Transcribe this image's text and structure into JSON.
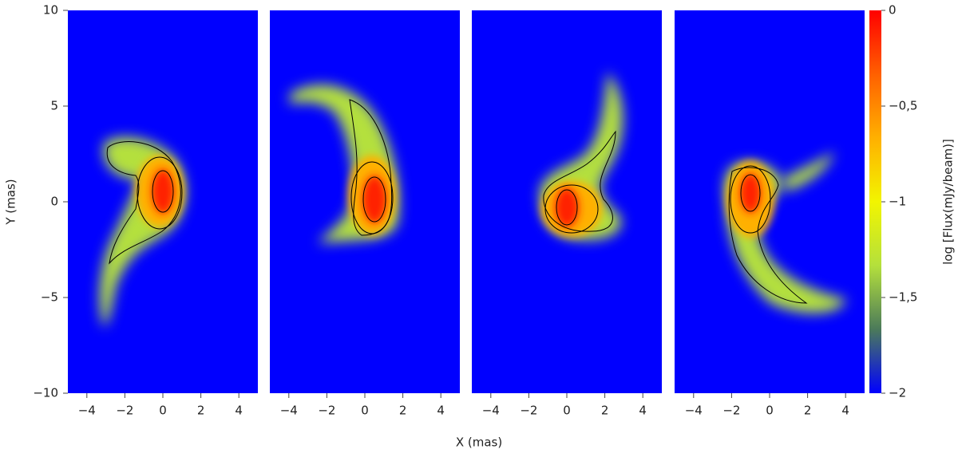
{
  "chart_data": {
    "type": "heatmap",
    "xlabel": "X (mas)",
    "ylabel": "Y (mas)",
    "xlim": [
      -5,
      5
    ],
    "ylim": [
      -10,
      10
    ],
    "xticks": [
      {
        "value": -4,
        "label": "−4"
      },
      {
        "value": -2,
        "label": "−2"
      },
      0,
      2,
      4
    ],
    "yticks": [
      {
        "value": -10,
        "label": "−10"
      },
      {
        "value": -5,
        "label": "−5"
      },
      0,
      5,
      10
    ],
    "background": "#0000ff",
    "colorbar": {
      "label": "log [Flux(mJy/beam)]",
      "lim": [
        -2,
        0
      ],
      "ticks": [
        {
          "value": -2,
          "label": "−2"
        },
        {
          "value": -1.5,
          "label": "−1,5"
        },
        {
          "value": -1,
          "label": "−1"
        },
        {
          "value": -0.5,
          "label": "−0,5"
        },
        0
      ],
      "colors": [
        "#0000ff",
        "#4b7a5a",
        "#b4e03c",
        "#f2f500",
        "#ffb000",
        "#ff6000",
        "#ff0000"
      ]
    }
  }
}
